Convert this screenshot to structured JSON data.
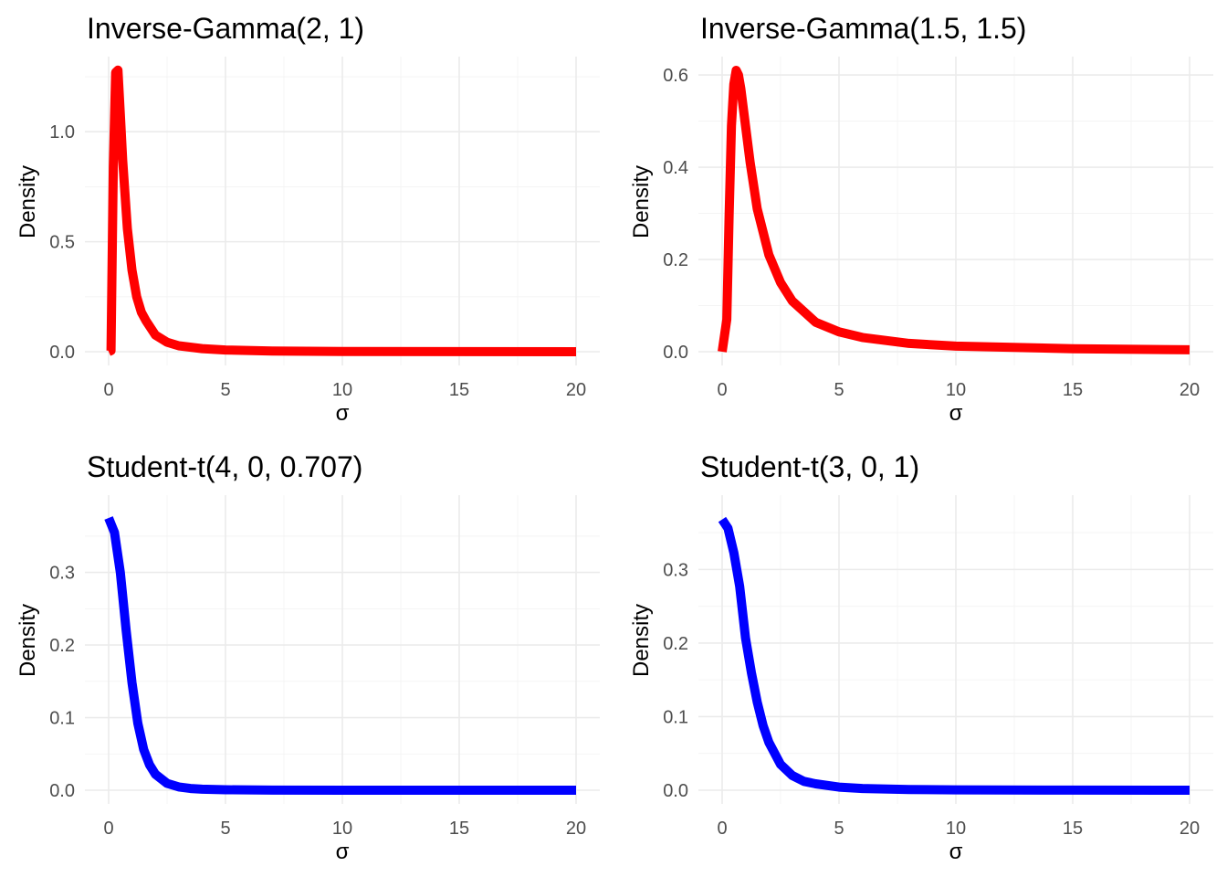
{
  "chart_data": [
    {
      "type": "line",
      "title": "Inverse-Gamma(2, 1)",
      "xlabel": "σ",
      "ylabel": "Density",
      "xlim": [
        0,
        20
      ],
      "ylim": [
        0,
        1.3
      ],
      "x_ticks": [
        0,
        5,
        10,
        15,
        20
      ],
      "x_tick_labels": [
        "0",
        "5",
        "10",
        "15",
        "20"
      ],
      "y_ticks": [
        0,
        0.5,
        1.0
      ],
      "y_tick_labels": [
        "0.0",
        "0.5",
        "1.0"
      ],
      "grid": true,
      "series": [
        {
          "color": "#ff0000",
          "x": [
            0,
            0.1,
            0.2,
            0.3,
            0.4,
            0.5,
            0.6,
            0.8,
            1.0,
            1.2,
            1.4,
            1.6,
            2.0,
            2.5,
            3.0,
            4.0,
            5.0,
            7.0,
            10.0,
            15.0,
            20.0
          ],
          "y": [
            0,
            0.005,
            0.84,
            1.27,
            1.28,
            1.08,
            0.87,
            0.56,
            0.37,
            0.25,
            0.18,
            0.14,
            0.076,
            0.043,
            0.027,
            0.014,
            0.008,
            0.003,
            0.001,
            0.0003,
            0.0001
          ]
        }
      ]
    },
    {
      "type": "line",
      "title": "Inverse-Gamma(1.5, 1.5)",
      "xlabel": "σ",
      "ylabel": "Density",
      "xlim": [
        0,
        20
      ],
      "ylim": [
        0,
        0.62
      ],
      "x_ticks": [
        0,
        5,
        10,
        15,
        20
      ],
      "x_tick_labels": [
        "0",
        "5",
        "10",
        "15",
        "20"
      ],
      "y_ticks": [
        0,
        0.2,
        0.4,
        0.6
      ],
      "y_tick_labels": [
        "0.0",
        "0.2",
        "0.4",
        "0.6"
      ],
      "grid": true,
      "series": [
        {
          "color": "#ff0000",
          "x": [
            0,
            0.2,
            0.3,
            0.4,
            0.5,
            0.6,
            0.7,
            0.8,
            1.0,
            1.2,
            1.5,
            2.0,
            2.5,
            3.0,
            4.0,
            5.0,
            6.0,
            8.0,
            10.0,
            15.0,
            20.0
          ],
          "y": [
            0,
            0.07,
            0.3,
            0.49,
            0.58,
            0.61,
            0.6,
            0.57,
            0.49,
            0.41,
            0.31,
            0.21,
            0.15,
            0.11,
            0.064,
            0.043,
            0.031,
            0.018,
            0.012,
            0.0065,
            0.0042
          ]
        }
      ]
    },
    {
      "type": "line",
      "title": "Student-t(4, 0, 0.707)",
      "xlabel": "σ",
      "ylabel": "Density",
      "xlim": [
        0,
        20
      ],
      "ylim": [
        0,
        0.375
      ],
      "x_ticks": [
        0,
        5,
        10,
        15,
        20
      ],
      "x_tick_labels": [
        "0",
        "5",
        "10",
        "15",
        "20"
      ],
      "y_ticks": [
        0,
        0.1,
        0.2,
        0.3
      ],
      "y_tick_labels": [
        "0.0",
        "0.1",
        "0.2",
        "0.3"
      ],
      "grid": true,
      "series": [
        {
          "color": "#0000ff",
          "x": [
            0,
            0.25,
            0.5,
            0.75,
            1.0,
            1.25,
            1.5,
            1.75,
            2.0,
            2.5,
            3.0,
            3.5,
            4.0,
            5.0,
            7.0,
            10.0,
            15.0,
            20.0
          ],
          "y": [
            0.375,
            0.355,
            0.3,
            0.22,
            0.148,
            0.092,
            0.056,
            0.035,
            0.022,
            0.0095,
            0.0045,
            0.0024,
            0.0014,
            0.0006,
            0.00015,
            3e-05,
            5e-06,
            2e-06
          ]
        }
      ]
    },
    {
      "type": "line",
      "title": "Student-t(3, 0, 1)",
      "xlabel": "σ",
      "ylabel": "Density",
      "xlim": [
        0,
        20
      ],
      "ylim": [
        0,
        0.37
      ],
      "x_ticks": [
        0,
        5,
        10,
        15,
        20
      ],
      "x_tick_labels": [
        "0",
        "5",
        "10",
        "15",
        "20"
      ],
      "y_ticks": [
        0,
        0.1,
        0.2,
        0.3
      ],
      "y_tick_labels": [
        "0.0",
        "0.1",
        "0.2",
        "0.3"
      ],
      "grid": true,
      "series": [
        {
          "color": "#0000ff",
          "x": [
            0,
            0.25,
            0.5,
            0.75,
            1.0,
            1.25,
            1.5,
            1.75,
            2.0,
            2.5,
            3.0,
            3.5,
            4.0,
            5.0,
            6.0,
            8.0,
            10.0,
            15.0,
            20.0
          ],
          "y": [
            0.368,
            0.356,
            0.323,
            0.277,
            0.207,
            0.16,
            0.12,
            0.088,
            0.065,
            0.035,
            0.02,
            0.012,
            0.0087,
            0.0042,
            0.0024,
            0.001,
            0.0005,
            0.00015,
            6e-05
          ]
        }
      ]
    }
  ]
}
